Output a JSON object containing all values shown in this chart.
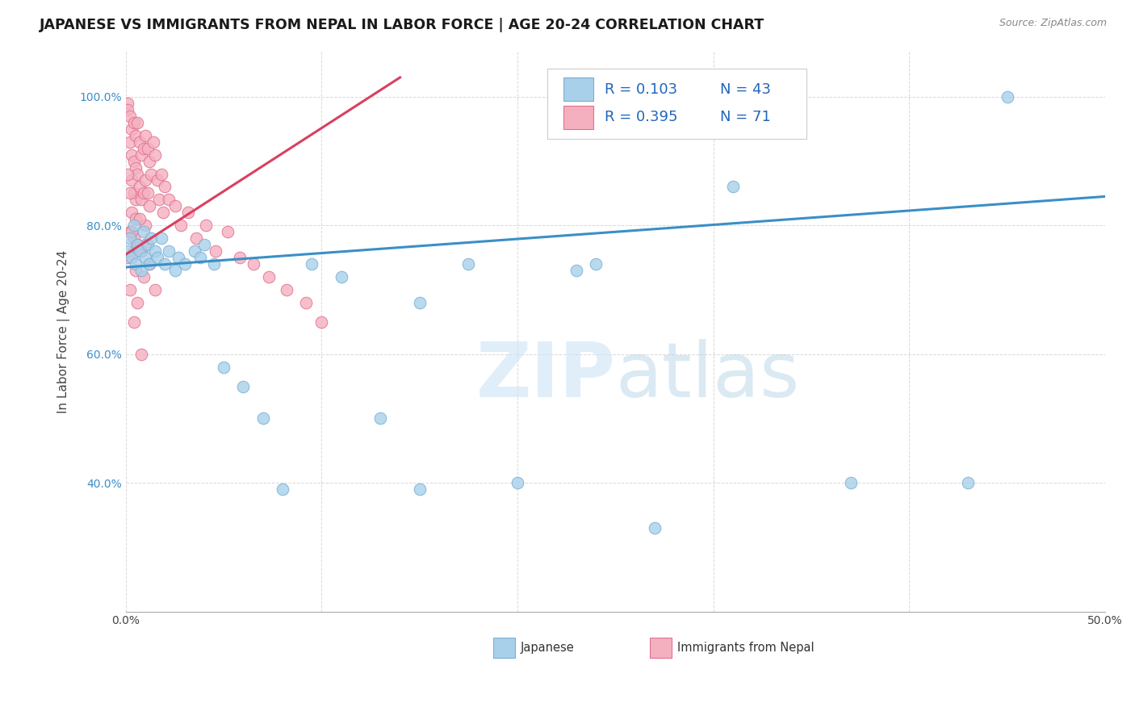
{
  "title": "JAPANESE VS IMMIGRANTS FROM NEPAL IN LABOR FORCE | AGE 20-24 CORRELATION CHART",
  "source": "Source: ZipAtlas.com",
  "ylabel": "In Labor Force | Age 20-24",
  "xlim": [
    0.0,
    0.5
  ],
  "ylim": [
    0.2,
    1.07
  ],
  "watermark": "ZIPatlas",
  "japanese_color": "#a8d0ea",
  "japanese_edge": "#7aafd4",
  "nepal_color": "#f5b0c0",
  "nepal_edge": "#e07090",
  "trendline_japanese_color": "#3a8fc7",
  "trendline_nepal_color": "#d94060",
  "background_color": "#ffffff",
  "grid_color": "#d8d8d8",
  "japanese_points_x": [
    0.001,
    0.002,
    0.003,
    0.004,
    0.005,
    0.006,
    0.007,
    0.008,
    0.009,
    0.01,
    0.011,
    0.012,
    0.013,
    0.015,
    0.016,
    0.018,
    0.02,
    0.022,
    0.025,
    0.027,
    0.03,
    0.035,
    0.038,
    0.04,
    0.045,
    0.05,
    0.06,
    0.07,
    0.08,
    0.095,
    0.11,
    0.13,
    0.15,
    0.175,
    0.2,
    0.23,
    0.27,
    0.31,
    0.37,
    0.43,
    0.15,
    0.24,
    0.45
  ],
  "japanese_points_y": [
    0.76,
    0.78,
    0.75,
    0.8,
    0.74,
    0.77,
    0.76,
    0.73,
    0.79,
    0.75,
    0.77,
    0.74,
    0.78,
    0.76,
    0.75,
    0.78,
    0.74,
    0.76,
    0.73,
    0.75,
    0.74,
    0.76,
    0.75,
    0.77,
    0.74,
    0.58,
    0.55,
    0.5,
    0.39,
    0.74,
    0.72,
    0.5,
    0.39,
    0.74,
    0.4,
    0.73,
    0.33,
    0.86,
    0.4,
    0.4,
    0.68,
    0.74,
    1.0
  ],
  "nepal_points_x": [
    0.001,
    0.001,
    0.002,
    0.002,
    0.003,
    0.003,
    0.003,
    0.004,
    0.004,
    0.004,
    0.005,
    0.005,
    0.005,
    0.006,
    0.006,
    0.007,
    0.007,
    0.008,
    0.008,
    0.009,
    0.009,
    0.01,
    0.01,
    0.01,
    0.011,
    0.011,
    0.012,
    0.012,
    0.013,
    0.014,
    0.015,
    0.016,
    0.017,
    0.018,
    0.019,
    0.02,
    0.022,
    0.025,
    0.028,
    0.032,
    0.036,
    0.041,
    0.046,
    0.052,
    0.058,
    0.065,
    0.073,
    0.082,
    0.092,
    0.1,
    0.001,
    0.002,
    0.003,
    0.004,
    0.005,
    0.006,
    0.001,
    0.002,
    0.003,
    0.004,
    0.005,
    0.007,
    0.008,
    0.009,
    0.01,
    0.012,
    0.015,
    0.002,
    0.004,
    0.006,
    0.008
  ],
  "nepal_points_y": [
    0.99,
    0.98,
    0.97,
    0.93,
    0.95,
    0.91,
    0.87,
    0.96,
    0.9,
    0.85,
    0.94,
    0.89,
    0.84,
    0.96,
    0.88,
    0.93,
    0.86,
    0.91,
    0.84,
    0.92,
    0.85,
    0.94,
    0.87,
    0.8,
    0.92,
    0.85,
    0.9,
    0.83,
    0.88,
    0.93,
    0.91,
    0.87,
    0.84,
    0.88,
    0.82,
    0.86,
    0.84,
    0.83,
    0.8,
    0.82,
    0.78,
    0.8,
    0.76,
    0.79,
    0.75,
    0.74,
    0.72,
    0.7,
    0.68,
    0.65,
    0.75,
    0.79,
    0.82,
    0.78,
    0.81,
    0.77,
    0.88,
    0.85,
    0.79,
    0.76,
    0.73,
    0.81,
    0.76,
    0.72,
    0.77,
    0.74,
    0.7,
    0.7,
    0.65,
    0.68,
    0.6
  ],
  "trendline_jp_x0": 0.0,
  "trendline_jp_x1": 0.5,
  "trendline_jp_y0": 0.735,
  "trendline_jp_y1": 0.845,
  "trendline_nepal_x0": 0.0,
  "trendline_nepal_x1": 0.14,
  "trendline_nepal_y0": 0.755,
  "trendline_nepal_y1": 1.03
}
